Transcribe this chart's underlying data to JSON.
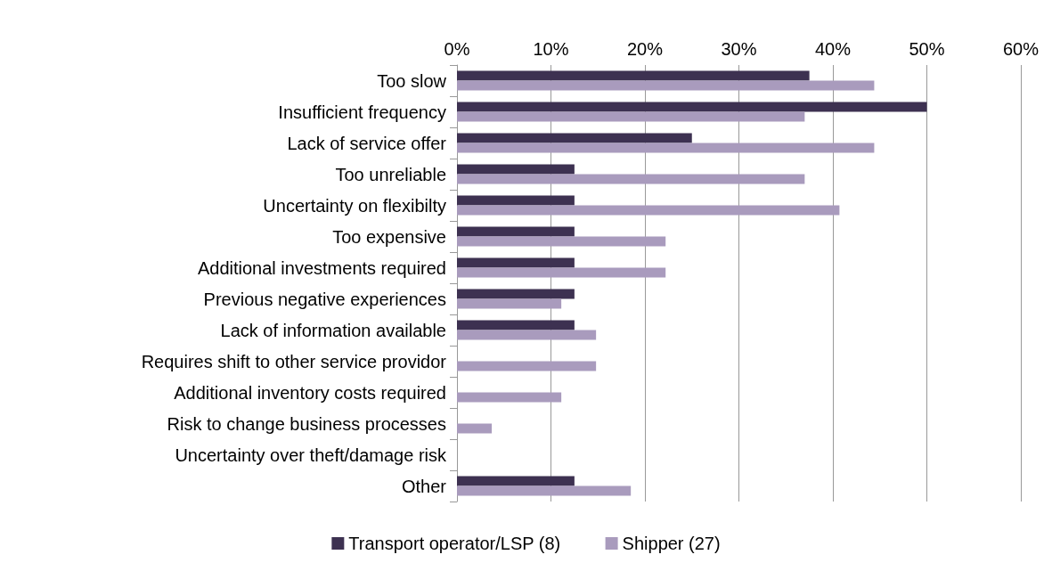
{
  "chart_data": {
    "type": "bar",
    "orientation": "horizontal",
    "categories": [
      "Too slow",
      "Insufficient frequency",
      "Lack of service offer",
      "Too unreliable",
      "Uncertainty on flexibilty",
      "Too expensive",
      "Additional investments required",
      "Previous negative experiences",
      "Lack of information available",
      "Requires shift to other service providor",
      "Additional inventory costs required",
      "Risk to change business processes",
      "Uncertainty over theft/damage risk",
      "Other"
    ],
    "series": [
      {
        "name": "Transport operator/LSP (8)",
        "color": "#3d3151",
        "values": [
          37.5,
          50,
          25,
          12.5,
          12.5,
          12.5,
          12.5,
          12.5,
          12.5,
          0,
          0,
          0,
          0,
          12.5
        ]
      },
      {
        "name": "Shipper (27)",
        "color": "#a99bbd",
        "values": [
          44.4,
          37.0,
          44.4,
          37.0,
          40.7,
          22.2,
          22.2,
          11.1,
          14.8,
          14.8,
          11.1,
          3.7,
          0,
          18.5
        ]
      }
    ],
    "xlim": [
      0,
      60
    ],
    "xticks": [
      {
        "value": 0,
        "label": "0%"
      },
      {
        "value": 10,
        "label": "10%"
      },
      {
        "value": 20,
        "label": "20%"
      },
      {
        "value": 30,
        "label": "30%"
      },
      {
        "value": 40,
        "label": "40%"
      },
      {
        "value": 50,
        "label": "50%"
      },
      {
        "value": 60,
        "label": "60%"
      }
    ],
    "grid": "x",
    "legend": "bottom"
  }
}
